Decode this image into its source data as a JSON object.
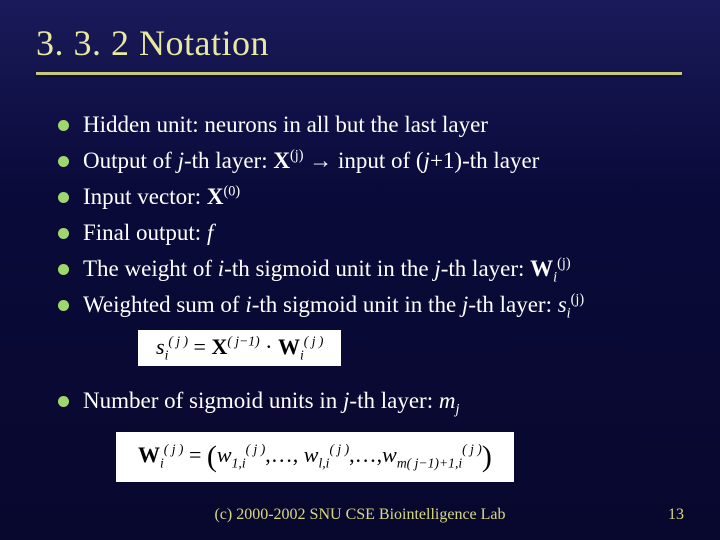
{
  "title": "3. 3. 2 Notation",
  "bullets": {
    "b1_pre": "Hidden unit: neurons in all but the last layer",
    "b2": {
      "pre": "Output of ",
      "j": "j",
      "mid1": "-th layer: ",
      "X": "X",
      "supj": "(j)",
      "arrow": " → input of (",
      "jp1": "j",
      "plus1": "+1)-th layer"
    },
    "b3": {
      "pre": "Input vector: ",
      "X": "X",
      "sup0": "(0)"
    },
    "b4": {
      "pre": "Final output: ",
      "f": "f"
    },
    "b5": {
      "pre": "The weight of ",
      "i": "i",
      "mid1": "-th sigmoid unit in the ",
      "j": "j",
      "mid2": "-th layer: ",
      "W": "W",
      "subi": "i",
      "supj": "(j)"
    },
    "b6": {
      "pre": "Weighted sum of ",
      "i": "i",
      "mid1": "-th sigmoid unit in the ",
      "j": "j",
      "mid2": "-th layer: ",
      "s": "s",
      "subi": "i",
      "supj": "(j)"
    },
    "b7": {
      "pre": "Number of sigmoid units in ",
      "j": "j",
      "mid": "-th layer: ",
      "m": "m",
      "subj": "j"
    }
  },
  "formula1": {
    "s": "s",
    "i": "i",
    "jpar": "( j )",
    "eq": " = ",
    "X": "X",
    "jm1": "( j−1)",
    "dot": " · ",
    "W": "W"
  },
  "formula2": {
    "W": "W",
    "i": "i",
    "jpar": "( j )",
    "eq": " = ",
    "lp": "(",
    "w": "w",
    "s1": "1,i",
    "comma": ",…, ",
    "sl": "l,i",
    "comma2": ",…,",
    "sm": "m( j−1)+1,i",
    "rp": ")"
  },
  "footer": "(c) 2000-2002 SNU CSE Biointelligence Lab",
  "page": "13"
}
